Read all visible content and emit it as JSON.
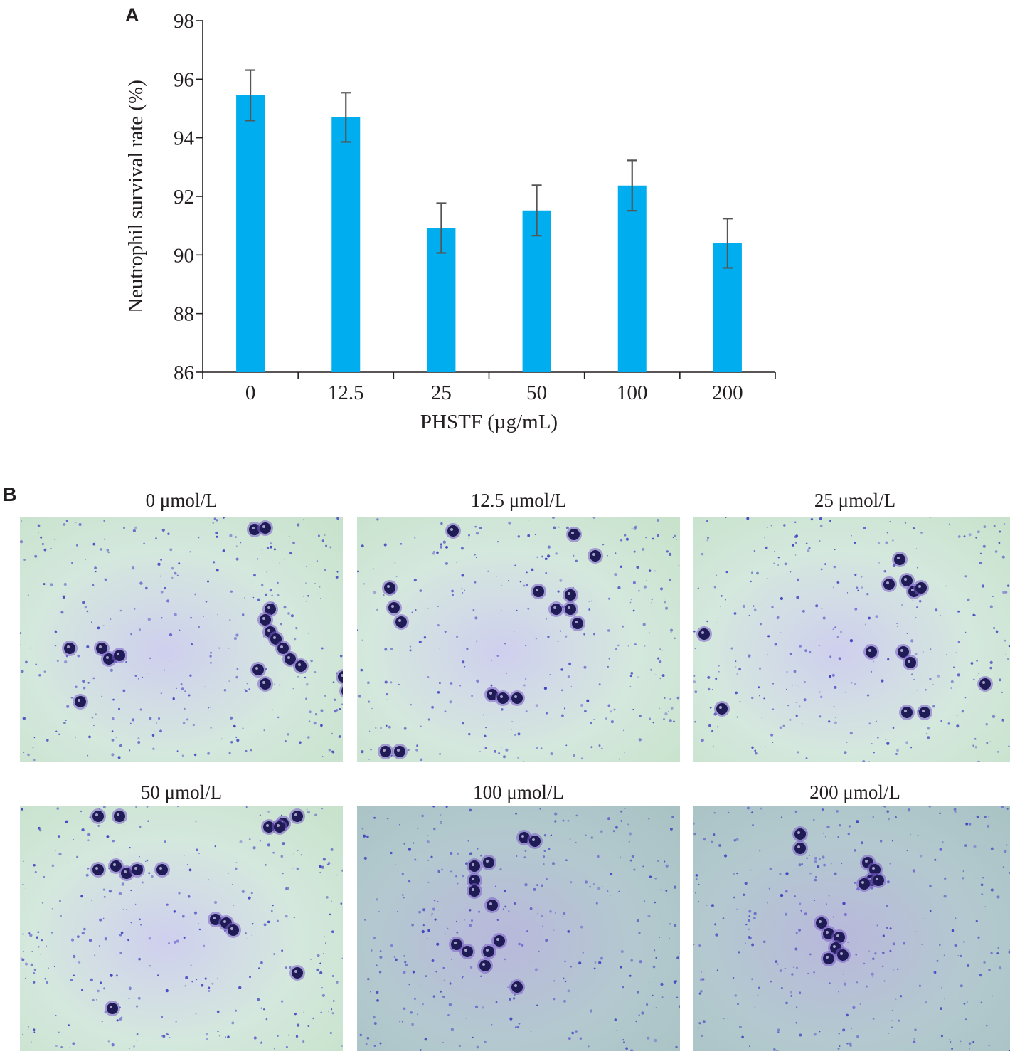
{
  "panel_a": {
    "label": "A"
  },
  "panel_b": {
    "label": "B",
    "images": [
      {
        "caption": "0 μmol/L"
      },
      {
        "caption": "12.5 μmol/L"
      },
      {
        "caption": "25 μmol/L"
      },
      {
        "caption": "50 μmol/L"
      },
      {
        "caption": "100 μmol/L"
      },
      {
        "caption": "200 μmol/L"
      }
    ]
  },
  "colors": {
    "bar": "#00aeef",
    "error_bar": "#555555",
    "axis": "#231f20"
  },
  "chart_data": {
    "type": "bar",
    "title": "",
    "categories": [
      "0",
      "12.5",
      "25",
      "50",
      "100",
      "200"
    ],
    "values": [
      95.45,
      94.7,
      90.92,
      91.52,
      92.37,
      90.4
    ],
    "error": [
      0.86,
      0.84,
      0.85,
      0.86,
      0.86,
      0.84
    ],
    "xlabel": "PHSTF (µg/mL)",
    "ylabel": "Neutrophil survival rate (%)",
    "ylim": [
      86,
      98
    ],
    "yticks": [
      "86",
      "88",
      "90",
      "92",
      "94",
      "96",
      "98"
    ],
    "grid": false
  }
}
